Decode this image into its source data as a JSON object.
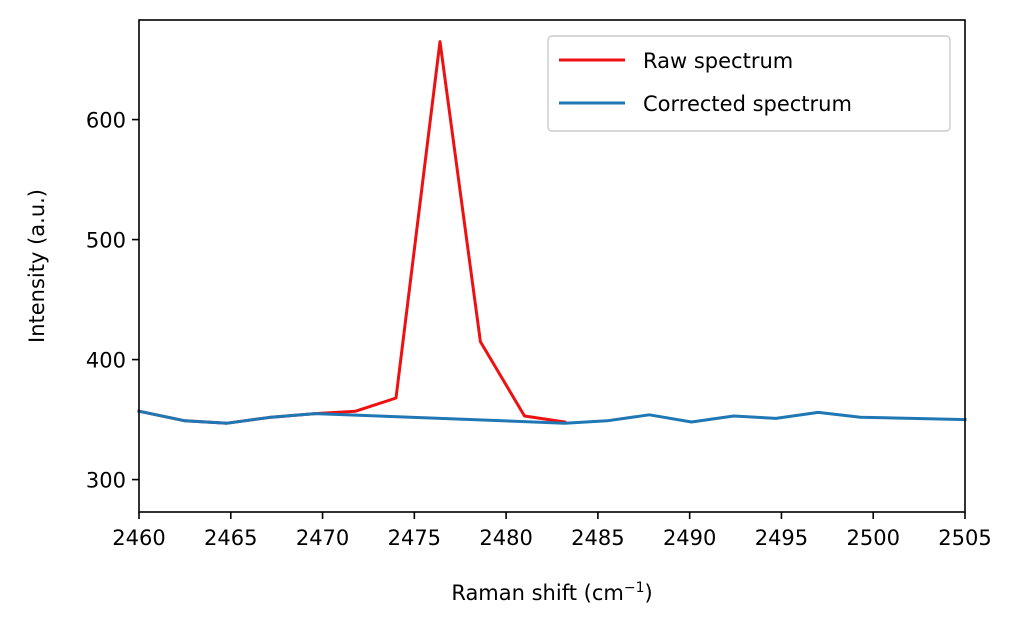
{
  "chart_data": {
    "type": "line",
    "xlabel": "Raman shift (cm",
    "xlabel_superscript": "−1",
    "xlabel_suffix": ")",
    "ylabel": "Intensity (a.u.)",
    "xlim": [
      2460,
      2505
    ],
    "ylim": [
      273,
      683
    ],
    "xticks": [
      2460,
      2465,
      2470,
      2475,
      2480,
      2485,
      2490,
      2495,
      2500,
      2505
    ],
    "yticks": [
      300,
      400,
      500,
      600
    ],
    "legend_position": "top-right",
    "grid": false,
    "series": [
      {
        "name": "Raw spectrum",
        "color": "#ee1111",
        "x": [
          2460.0,
          2462.5,
          2464.8,
          2467.2,
          2469.6,
          2471.8,
          2474.0,
          2476.4,
          2478.6,
          2481.0,
          2483.2
        ],
        "y": [
          357,
          349,
          347,
          352,
          355,
          357,
          368,
          665,
          415,
          353,
          348
        ]
      },
      {
        "name": "Corrected spectrum",
        "color": "#1f77b4",
        "x": [
          2460.0,
          2462.5,
          2464.8,
          2467.2,
          2469.6,
          2483.2,
          2485.5,
          2487.8,
          2490.1,
          2492.4,
          2494.7,
          2497.0,
          2499.3,
          2505.0
        ],
        "y": [
          357,
          349,
          347,
          352,
          355,
          347,
          349,
          354,
          348,
          353,
          351,
          356,
          352,
          350
        ]
      }
    ]
  }
}
